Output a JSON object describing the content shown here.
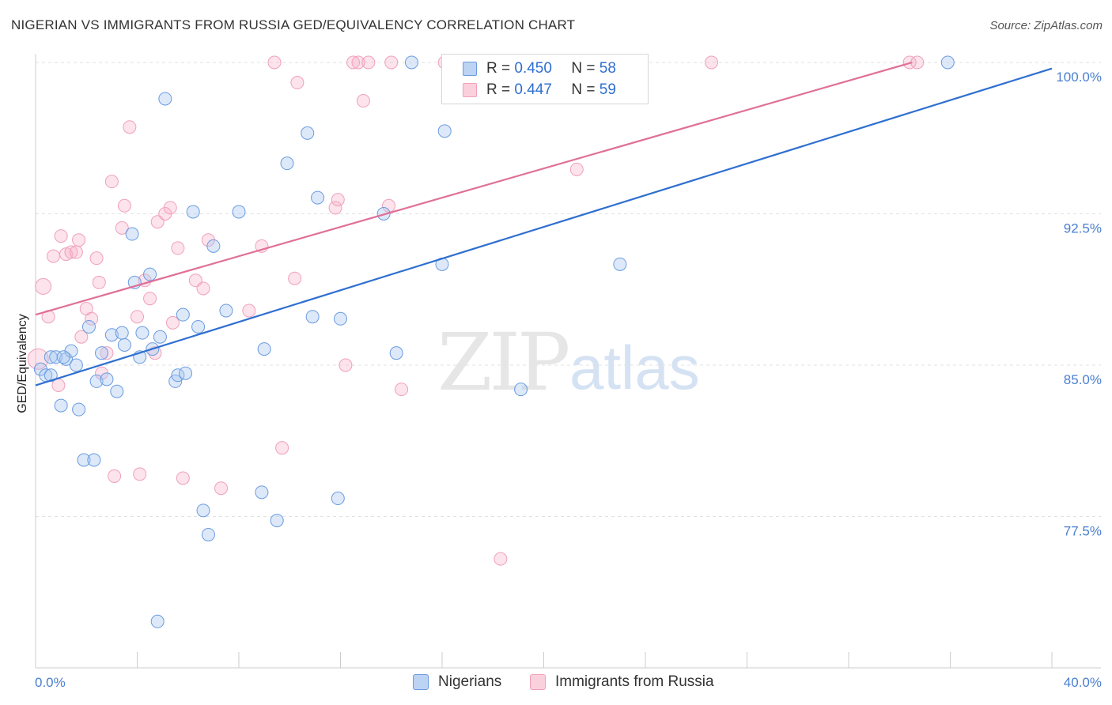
{
  "title": "NIGERIAN VS IMMIGRANTS FROM RUSSIA GED/EQUIVALENCY CORRELATION CHART",
  "source": "Source: ZipAtlas.com",
  "watermark": {
    "zip": "ZIP",
    "atlas": "atlas"
  },
  "legend": {
    "r_label": "R =",
    "n_label": "N =",
    "nigerians": {
      "r": "0.450",
      "n": "58"
    },
    "russia": {
      "r": "0.447",
      "n": "59"
    }
  },
  "chart_data": {
    "type": "scatter",
    "title": "NIGERIAN VS IMMIGRANTS FROM RUSSIA GED/EQUIVALENCY CORRELATION CHART",
    "xlabel": "",
    "ylabel": "GED/Equivalency",
    "xlim": [
      0,
      40
    ],
    "ylim": [
      71.5,
      101.0
    ],
    "x_tick_labels": [
      "0.0%",
      "40.0%"
    ],
    "y_ticks": [
      77.5,
      85.0,
      92.5,
      100.0
    ],
    "y_tick_labels": [
      "77.5%",
      "85.0%",
      "92.5%",
      "100.0%"
    ],
    "grid": true,
    "legend_placement": "top-center",
    "colors": {
      "nigerians": "#6a9be0",
      "russia": "#f0a0bb",
      "nigerians_line": "#2f6fd0",
      "russia_line": "#e07098"
    },
    "series": [
      {
        "name": "Nigerians",
        "trend": {
          "x": [
            0,
            40
          ],
          "y": [
            84.0,
            99.7
          ]
        },
        "points": [
          [
            0.2,
            84.8
          ],
          [
            0.4,
            84.5
          ],
          [
            0.6,
            85.4
          ],
          [
            0.8,
            85.4
          ],
          [
            1.0,
            83.0
          ],
          [
            1.2,
            85.3
          ],
          [
            1.4,
            85.7
          ],
          [
            1.6,
            85.0
          ],
          [
            1.7,
            82.8
          ],
          [
            1.9,
            80.3
          ],
          [
            2.1,
            86.9
          ],
          [
            2.3,
            80.3
          ],
          [
            2.4,
            84.2
          ],
          [
            2.6,
            85.6
          ],
          [
            2.8,
            84.3
          ],
          [
            3.0,
            86.5
          ],
          [
            3.2,
            83.7
          ],
          [
            3.4,
            86.6
          ],
          [
            3.5,
            86.0
          ],
          [
            3.8,
            91.5
          ],
          [
            3.9,
            89.1
          ],
          [
            4.1,
            85.4
          ],
          [
            4.2,
            86.6
          ],
          [
            4.5,
            89.5
          ],
          [
            4.6,
            85.8
          ],
          [
            4.8,
            72.3
          ],
          [
            4.9,
            86.4
          ],
          [
            5.1,
            98.2
          ],
          [
            5.5,
            84.2
          ],
          [
            5.6,
            84.5
          ],
          [
            5.9,
            84.6
          ],
          [
            5.8,
            87.5
          ],
          [
            6.2,
            92.6
          ],
          [
            6.4,
            86.9
          ],
          [
            6.6,
            77.8
          ],
          [
            6.8,
            76.6
          ],
          [
            7.0,
            90.9
          ],
          [
            7.5,
            87.7
          ],
          [
            8.0,
            92.6
          ],
          [
            8.9,
            78.7
          ],
          [
            9.0,
            85.8
          ],
          [
            9.5,
            77.3
          ],
          [
            9.9,
            95.0
          ],
          [
            10.7,
            96.5
          ],
          [
            10.9,
            87.4
          ],
          [
            11.1,
            93.3
          ],
          [
            11.9,
            78.4
          ],
          [
            12.0,
            87.3
          ],
          [
            13.7,
            92.5
          ],
          [
            14.2,
            85.6
          ],
          [
            16.0,
            90.0
          ],
          [
            16.1,
            96.6
          ],
          [
            19.1,
            83.8
          ],
          [
            23.0,
            90.0
          ],
          [
            35.9,
            100.0
          ],
          [
            14.8,
            100.0
          ],
          [
            0.6,
            84.5
          ],
          [
            1.1,
            85.4
          ]
        ]
      },
      {
        "name": "Immigrants from Russia",
        "trend": {
          "x": [
            0,
            34.5
          ],
          "y": [
            87.5,
            100.0
          ]
        },
        "points": [
          [
            0.1,
            85.3
          ],
          [
            0.3,
            88.9
          ],
          [
            0.5,
            87.4
          ],
          [
            0.7,
            90.4
          ],
          [
            0.9,
            84.0
          ],
          [
            1.0,
            91.4
          ],
          [
            1.2,
            90.5
          ],
          [
            1.4,
            90.6
          ],
          [
            1.6,
            90.6
          ],
          [
            1.7,
            91.2
          ],
          [
            1.8,
            86.4
          ],
          [
            2.0,
            87.8
          ],
          [
            2.2,
            87.3
          ],
          [
            2.4,
            90.3
          ],
          [
            2.5,
            89.1
          ],
          [
            2.6,
            84.6
          ],
          [
            2.8,
            85.6
          ],
          [
            3.0,
            94.1
          ],
          [
            3.1,
            79.5
          ],
          [
            3.4,
            91.8
          ],
          [
            3.5,
            92.9
          ],
          [
            3.7,
            96.8
          ],
          [
            4.0,
            87.4
          ],
          [
            4.1,
            79.6
          ],
          [
            4.3,
            89.2
          ],
          [
            4.5,
            88.3
          ],
          [
            4.7,
            85.6
          ],
          [
            4.8,
            92.1
          ],
          [
            5.1,
            92.5
          ],
          [
            5.3,
            92.8
          ],
          [
            5.4,
            87.1
          ],
          [
            5.6,
            90.8
          ],
          [
            5.8,
            79.4
          ],
          [
            6.3,
            89.2
          ],
          [
            6.6,
            88.8
          ],
          [
            6.8,
            91.2
          ],
          [
            7.3,
            78.9
          ],
          [
            8.4,
            87.7
          ],
          [
            8.9,
            90.9
          ],
          [
            9.4,
            100.0
          ],
          [
            9.7,
            80.9
          ],
          [
            10.2,
            89.3
          ],
          [
            10.3,
            99.0
          ],
          [
            11.8,
            92.8
          ],
          [
            11.9,
            93.2
          ],
          [
            12.2,
            85.0
          ],
          [
            12.5,
            100.0
          ],
          [
            12.7,
            100.0
          ],
          [
            12.9,
            98.1
          ],
          [
            13.1,
            100.0
          ],
          [
            13.9,
            92.9
          ],
          [
            14.0,
            100.0
          ],
          [
            14.4,
            83.8
          ],
          [
            16.1,
            100.0
          ],
          [
            18.3,
            75.4
          ],
          [
            21.3,
            94.7
          ],
          [
            26.6,
            100.0
          ],
          [
            34.4,
            100.0
          ],
          [
            34.7,
            100.0
          ]
        ]
      }
    ]
  }
}
